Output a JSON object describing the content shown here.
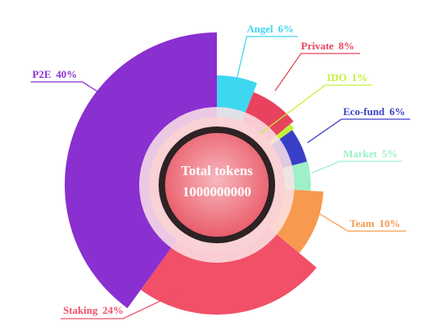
{
  "chart_data": {
    "type": "pie",
    "categories": [
      "Angel",
      "Private",
      "IDO",
      "Eco-fund",
      "Market",
      "Team",
      "Staking",
      "P2E"
    ],
    "values": [
      6,
      8,
      1,
      6,
      5,
      10,
      24,
      40
    ],
    "value_labels": [
      "6%",
      "8%",
      "1%",
      "6%",
      "5%",
      "10%",
      "24%",
      "40%"
    ],
    "colors": [
      "#3fd6ef",
      "#e8435e",
      "#c4f03a",
      "#3a3fc8",
      "#9ef0c8",
      "#f79a4f",
      "#f24f68",
      "#8a2fd0"
    ],
    "center_label": "Total tokens",
    "total": 1000000000
  }
}
